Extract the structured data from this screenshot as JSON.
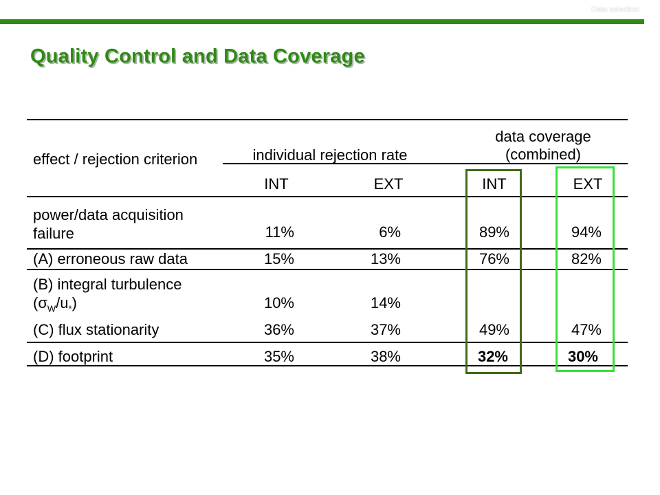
{
  "slide": {
    "corner_label": "Data selection",
    "title": "Quality Control and Data Coverage",
    "accent_color": "#2f8a14"
  },
  "table": {
    "header": {
      "criterion": "effect / rejection criterion",
      "individual_rate": "individual rejection rate",
      "coverage_line1": "data coverage",
      "coverage_line2": "(combined)",
      "col_int": "INT",
      "col_ext": "EXT",
      "col_cov_int": "INT",
      "col_cov_ext": "EXT"
    },
    "rows": [
      {
        "label_line1": "power/data acquisition",
        "label_line2": "failure",
        "rej_int": "11%",
        "rej_ext": "6%",
        "cov_int": "89%",
        "cov_ext": "94%"
      },
      {
        "label": "(A) erroneous raw data",
        "rej_int": "15%",
        "rej_ext": "13%",
        "cov_int": "76%",
        "cov_ext": "82%"
      },
      {
        "label_line1": "(B) integral turbulence",
        "label_line2_open": "(",
        "label_line2_sigma": "σ",
        "label_line2_w": "W",
        "label_line2_rest": "/u",
        "label_line2_star": "*",
        "label_line2_close": ")",
        "rej_int": "10%",
        "rej_ext": "14%"
      },
      {
        "label": "(C) flux stationarity",
        "rej_int": "36%",
        "rej_ext": "37%",
        "cov_int": "49%",
        "cov_ext": "47%"
      },
      {
        "label": "(D) footprint",
        "rej_int": "35%",
        "rej_ext": "38%",
        "cov_int": "32%",
        "cov_ext": "30%"
      }
    ],
    "highlight_colors": {
      "int": "#3f6b1a",
      "ext": "#39e039"
    }
  }
}
